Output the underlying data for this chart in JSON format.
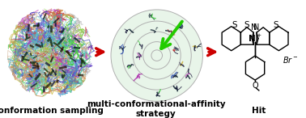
{
  "background_color": "#ffffff",
  "panel_labels": [
    "Conformation sampling",
    "multi-conformational-affinity\nstrategy",
    "Hit"
  ],
  "label_fontsize": 7.5,
  "label_fontweight": "bold",
  "arrow_color": "#cc0000",
  "arrow_green_color": "#22cc00",
  "fig_width": 3.78,
  "fig_height": 1.46,
  "protein_colors": [
    "#44cc44",
    "#bb44bb",
    "#4444bb",
    "#bbbbbb",
    "#cc4444",
    "#44ccbb",
    "#ccbb44",
    "#6644cc",
    "#44bbcc",
    "#88cc44",
    "#cc8844",
    "#4488cc",
    "#88ccaa",
    "#ccaa88"
  ],
  "bull_colors": [
    "#44cc44",
    "#aa22aa",
    "#2244aa",
    "#cc2222",
    "#ccaa22",
    "#44aacc"
  ],
  "dark_colors": [
    "#111133",
    "#221100",
    "#002211",
    "#112200"
  ]
}
